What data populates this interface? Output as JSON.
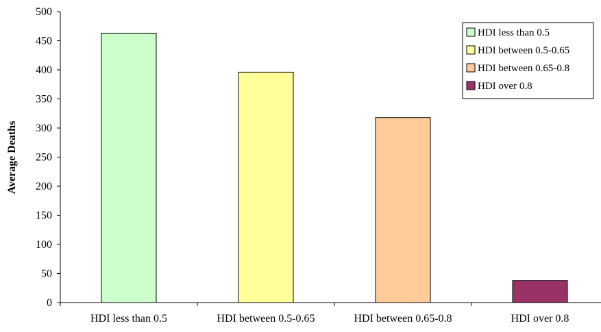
{
  "chart_data": {
    "type": "bar",
    "categories": [
      "HDI less than 0.5",
      "HDI between 0.5-0.65",
      "HDI between 0.65-0.8",
      "HDI over 0.8"
    ],
    "values": [
      463,
      396,
      318,
      38
    ],
    "colors": [
      "#ccffcc",
      "#ffff99",
      "#ffcc99",
      "#993366"
    ],
    "title": "",
    "xlabel": "",
    "ylabel": "Average Deaths",
    "ylim": [
      0,
      500
    ],
    "yticks": [
      "0",
      "50",
      "100",
      "150",
      "200",
      "250",
      "300",
      "350",
      "400",
      "450",
      "500"
    ],
    "grid": false,
    "legend": {
      "placement": "top-right",
      "entries": [
        "HDI less than 0.5",
        "HDI between 0.5-0.65",
        "HDI between 0.65-0.8",
        "HDI over 0.8"
      ]
    }
  }
}
